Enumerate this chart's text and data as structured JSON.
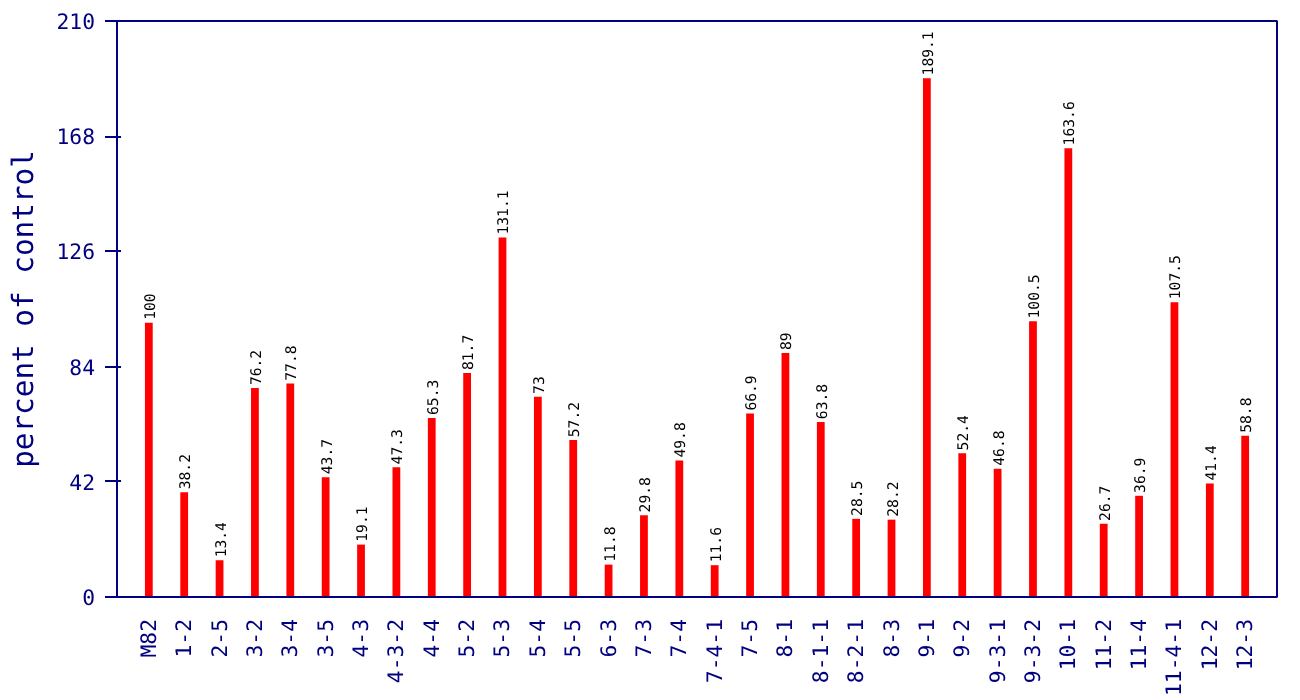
{
  "chart_data": {
    "type": "bar",
    "ylabel": "percent of control",
    "categories": [
      "M82",
      "1-2",
      "2-5",
      "3-2",
      "3-4",
      "3-5",
      "4-3",
      "4-3-2",
      "4-4",
      "5-2",
      "5-3",
      "5-4",
      "5-5",
      "6-3",
      "7-3",
      "7-4",
      "7-4-1",
      "7-5",
      "8-1",
      "8-1-1",
      "8-2-1",
      "8-3",
      "9-1",
      "9-2",
      "9-3-1",
      "9-3-2",
      "10-1",
      "11-2",
      "11-4",
      "11-4-1",
      "12-2",
      "12-3"
    ],
    "values": [
      100,
      38.2,
      13.4,
      76.2,
      77.8,
      43.7,
      19.1,
      47.3,
      65.3,
      81.7,
      131.1,
      73,
      57.2,
      11.8,
      29.8,
      49.8,
      11.6,
      66.9,
      89,
      63.8,
      28.5,
      28.2,
      189.1,
      52.4,
      46.8,
      100.5,
      163.6,
      26.7,
      36.9,
      107.5,
      41.4,
      58.8
    ],
    "color": "#ff0000",
    "ylim": [
      0,
      210
    ],
    "yticks": [
      0,
      42,
      84,
      126,
      168,
      210
    ],
    "data_labels": true,
    "grid": false
  }
}
